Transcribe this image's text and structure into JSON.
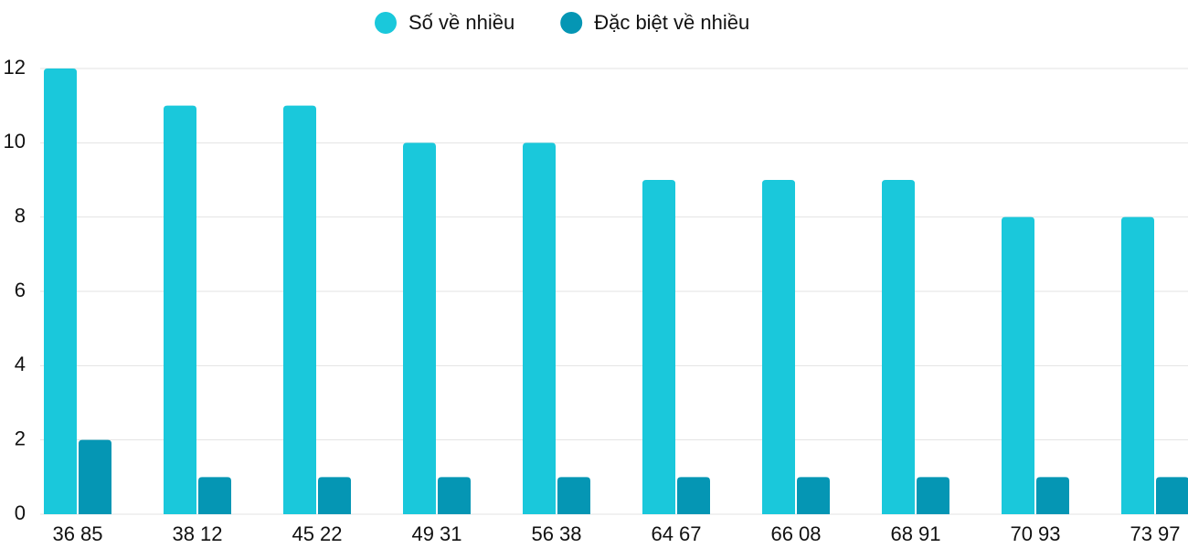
{
  "chart_data": {
    "type": "bar",
    "categories": [
      "36 85",
      "38 12",
      "45 22",
      "49 31",
      "56 38",
      "64 67",
      "66 08",
      "68 91",
      "70 93",
      "73 97"
    ],
    "series": [
      {
        "name": "Số về nhiều",
        "color": "#1ac8db",
        "values": [
          12,
          11,
          11,
          10,
          10,
          9,
          9,
          9,
          8,
          8
        ]
      },
      {
        "name": "Đặc biệt về nhiều",
        "color": "#0596b4",
        "values": [
          2,
          1,
          1,
          1,
          1,
          1,
          1,
          1,
          1,
          1
        ]
      }
    ],
    "ylim": [
      0,
      12
    ],
    "yticks": [
      0,
      2,
      4,
      6,
      8,
      10,
      12
    ],
    "grid": true,
    "legend": "top"
  }
}
